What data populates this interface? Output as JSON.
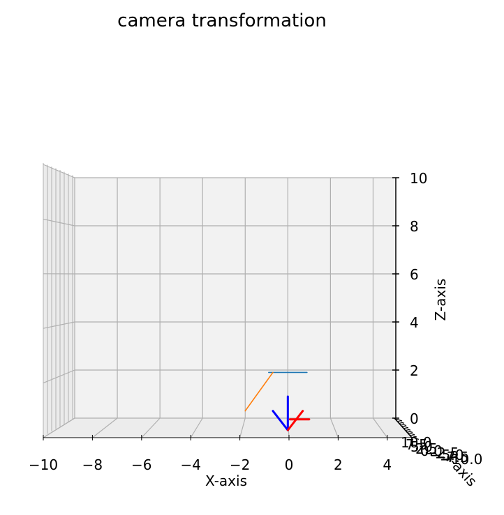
{
  "chart_data": {
    "type": "line",
    "title": "camera transformation",
    "xlabel": "X-axis",
    "ylabel": "Y-axis",
    "zlabel": "Z-axis",
    "xlim": [
      -10,
      5
    ],
    "zlim": [
      0,
      10
    ],
    "x_ticks": [
      "−10",
      "−8",
      "−6",
      "−4",
      "−2",
      "0",
      "2",
      "4"
    ],
    "z_ticks": [
      "0",
      "2",
      "4",
      "6",
      "8",
      "10"
    ],
    "y_ticks_crowded": [
      "10.0",
      "7.5",
      "5.0",
      "2.5",
      "0.0",
      "−2.5",
      "−5.0",
      "−7.5",
      "−10.0"
    ],
    "grid": true,
    "view": "near-front elevation",
    "series": [
      {
        "color": "#1f77b4",
        "points": [
          [
            -0.9,
            1.9
          ],
          [
            0.9,
            1.9
          ]
        ]
      },
      {
        "color": "#ff7f0e",
        "points": [
          [
            -2.0,
            0.3
          ],
          [
            -0.7,
            1.9
          ]
        ]
      },
      {
        "color": "#0000ff",
        "points": [
          [
            0,
            0.9
          ],
          [
            0,
            -0.5
          ]
        ]
      },
      {
        "color": "#0000ff",
        "points": [
          [
            0,
            -0.5
          ],
          [
            -0.7,
            0.3
          ]
        ]
      },
      {
        "color": "#ff0000",
        "points": [
          [
            0,
            -0.5
          ],
          [
            0.7,
            0.3
          ]
        ]
      },
      {
        "color": "#ff0000",
        "points": [
          [
            0.1,
            -0.05
          ],
          [
            1.0,
            -0.05
          ]
        ]
      }
    ]
  }
}
